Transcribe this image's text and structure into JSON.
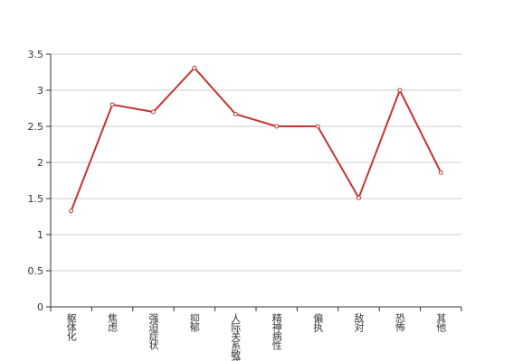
{
  "chart_data": {
    "type": "line",
    "categories": [
      "躯体化",
      "焦虑",
      "强迫症状",
      "抑郁",
      "人际关系敏感",
      "精神病性",
      "偏执",
      "敌对",
      "恐怖",
      "其他"
    ],
    "series": [
      {
        "color": "#c23531",
        "values": [
          1.33,
          2.8,
          2.7,
          3.31,
          2.67,
          2.5,
          2.5,
          1.51,
          3.0,
          1.86
        ]
      }
    ],
    "ylim": [
      0,
      3.5
    ],
    "yticks": [
      0,
      0.5,
      1,
      1.5,
      2,
      2.5,
      3,
      3.5
    ],
    "grid": true
  }
}
